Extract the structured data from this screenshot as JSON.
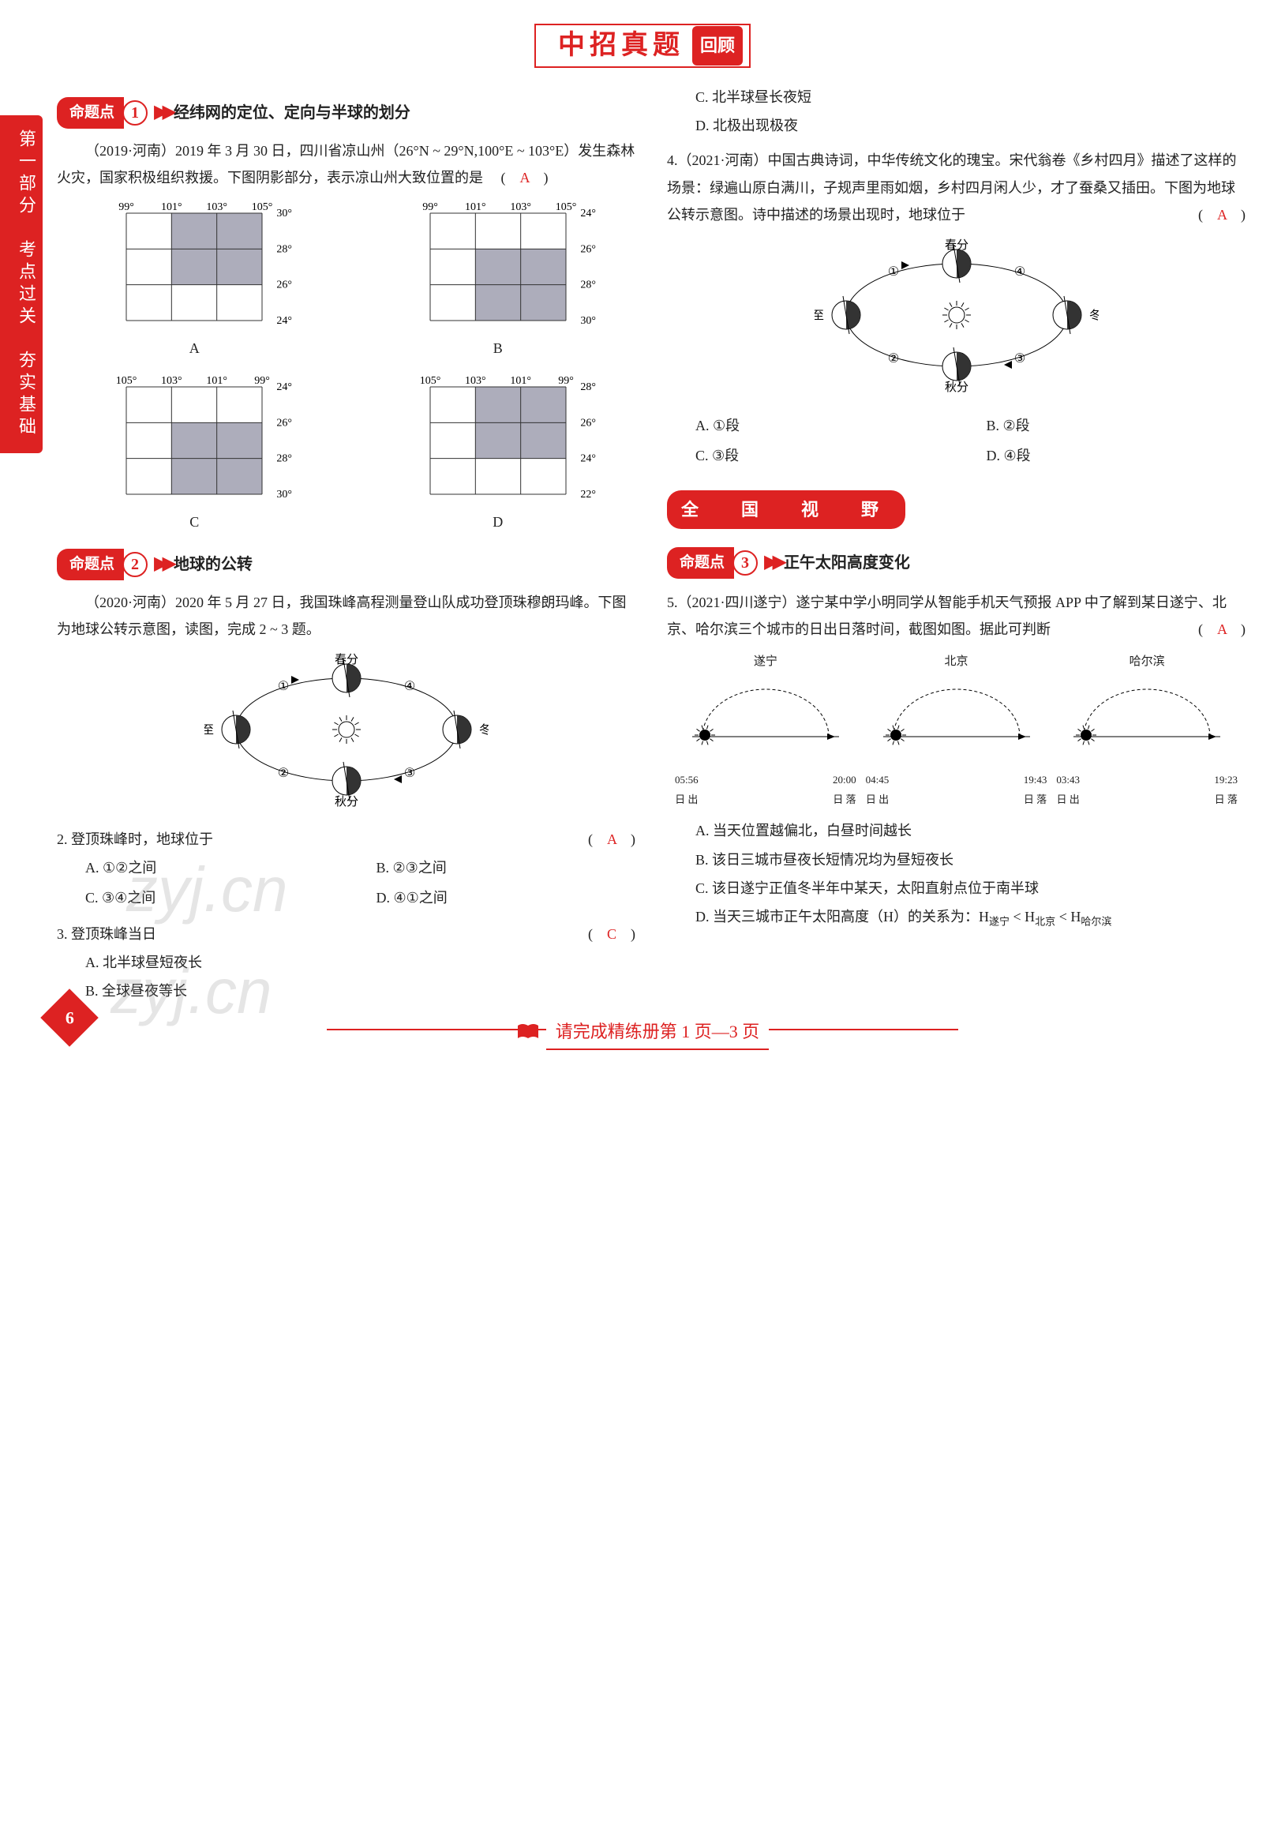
{
  "header": {
    "title": "中招真题",
    "badge": "回顾"
  },
  "sideTab": "第一部分　考点过关　夯实基础",
  "topic1": {
    "pill": "命题点",
    "num": "1",
    "label": "经纬网的定位、定向与半球的划分",
    "intro": "（2019·河南）2019 年 3 月 30 日，四川省凉山州（26°N ~ 29°N,100°E ~ 103°E）发生森林火灾，国家积极组织救援。下图阴影部分，表示凉山州大致位置的是",
    "answer": "A",
    "grids": {
      "A": {
        "lon": [
          "99°",
          "101°",
          "103°",
          "105°"
        ],
        "lat": [
          "30°",
          "28°",
          "26°",
          "24°"
        ],
        "shadeCol": 1,
        "shadeRow": 0,
        "lonDir": "asc",
        "latDir": "desc"
      },
      "B": {
        "lon": [
          "99°",
          "101°",
          "103°",
          "105°"
        ],
        "lat": [
          "24°",
          "26°",
          "28°",
          "30°"
        ],
        "shadeCol": 1,
        "shadeRow": 1,
        "lonDir": "asc",
        "latDir": "asc"
      },
      "C": {
        "lon": [
          "105°",
          "103°",
          "101°",
          "99°"
        ],
        "lat": [
          "24°",
          "26°",
          "28°",
          "30°"
        ],
        "shadeCol": 1,
        "shadeRow": 1,
        "lonDir": "desc",
        "latDir": "asc"
      },
      "D": {
        "lon": [
          "105°",
          "103°",
          "101°",
          "99°"
        ],
        "lat": [
          "28°",
          "26°",
          "24°",
          "22°"
        ],
        "shadeCol": 1,
        "shadeRow": 0,
        "lonDir": "desc",
        "latDir": "desc-alt"
      }
    }
  },
  "topic2": {
    "pill": "命题点",
    "num": "2",
    "label": "地球的公转",
    "intro": "（2020·河南）2020 年 5 月 27 日，我国珠峰高程测量登山队成功登顶珠穆朗玛峰。下图为地球公转示意图，读图，完成 2 ~ 3 题。",
    "orbit": {
      "top": "春分",
      "right": "冬至",
      "bottom": "秋分",
      "left": "夏至",
      "nums": [
        "①",
        "②",
        "③",
        "④"
      ]
    }
  },
  "q2": {
    "stem": "2. 登顶珠峰时，地球位于",
    "answer": "A",
    "opts": [
      "A. ①②之间",
      "B. ②③之间",
      "C. ③④之间",
      "D. ④①之间"
    ]
  },
  "q3": {
    "stem": "3. 登顶珠峰当日",
    "answer": "C",
    "opts": [
      "A. 北半球昼短夜长",
      "B. 全球昼夜等长",
      "C. 北半球昼长夜短",
      "D. 北极出现极夜"
    ]
  },
  "q4": {
    "stem": "4.（2021·河南）中国古典诗词，中华传统文化的瑰宝。宋代翁卷《乡村四月》描述了这样的场景：绿遍山原白满川，子规声里雨如烟，乡村四月闲人少，才了蚕桑又插田。下图为地球公转示意图。诗中描述的场景出现时，地球位于",
    "answer": "A",
    "orbit": {
      "top": "春分",
      "right": "冬至",
      "bottom": "秋分",
      "left": "夏至",
      "nums": [
        "①",
        "②",
        "③",
        "④"
      ]
    },
    "opts": [
      "A. ①段",
      "B. ②段",
      "C. ③段",
      "D. ④段"
    ]
  },
  "nationalBand": "全　国　视　野",
  "topic3": {
    "pill": "命题点",
    "num": "3",
    "label": "正午太阳高度变化"
  },
  "q5": {
    "stem": "5.（2021·四川遂宁）遂宁某中学小明同学从智能手机天气预报 APP 中了解到某日遂宁、北京、哈尔滨三个城市的日出日落时间，截图如图。据此可判断",
    "answer": "A",
    "suntimes": [
      {
        "city": "遂宁",
        "rise": "05:56",
        "riseLbl": "日 出",
        "set": "20:00",
        "setLbl": "日 落"
      },
      {
        "city": "北京",
        "rise": "04:45",
        "riseLbl": "日 出",
        "set": "19:43",
        "setLbl": "日 落"
      },
      {
        "city": "哈尔滨",
        "rise": "03:43",
        "riseLbl": "日 出",
        "set": "19:23",
        "setLbl": "日 落"
      }
    ],
    "opts": [
      "A. 当天位置越偏北，白昼时间越长",
      "B. 该日三城市昼夜长短情况均为昼短夜长",
      "C. 该日遂宁正值冬半年中某天，太阳直射点位于南半球",
      "D. 当天三城市正午太阳高度（H）的关系为：H遂宁 < H北京 < H哈尔滨"
    ]
  },
  "footer": "请完成精练册第 1 页—3 页",
  "pageNum": "6",
  "watermarks": [
    "zyj.cn",
    "zyj.cn"
  ],
  "colors": {
    "accent": "#d22",
    "answer": "#d22",
    "shade": "#9aa",
    "grid": "#444"
  }
}
